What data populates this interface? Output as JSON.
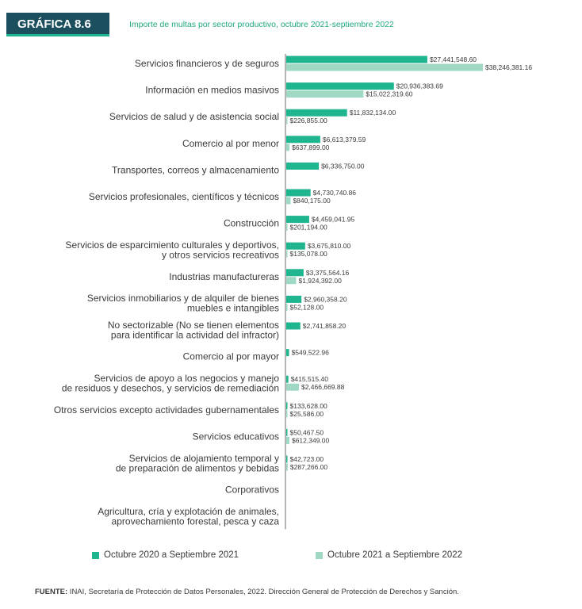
{
  "header": {
    "badge": "GRÁFICA 8.6",
    "title": "Importe de multas por sector productivo, octubre 2021-septiembre 2022"
  },
  "colors": {
    "series1": "#1fb58f",
    "series2": "#9fd9c4",
    "badge_bg": "#1b4f5e"
  },
  "chart_data": {
    "type": "bar",
    "orientation": "horizontal",
    "title": "Importe de multas por sector productivo, octubre 2021-septiembre 2022",
    "categories": [
      "Servicios financieros y de seguros",
      "Información en medios masivos",
      "Servicios de salud y de asistencia social",
      "Comercio al por menor",
      "Transportes, correos y almacenamiento",
      "Servicios profesionales, científicos y técnicos",
      "Construcción",
      "Servicios de esparcimiento culturales y deportivos, y otros servicios recreativos",
      "Industrias manufactureras",
      "Servicios inmobiliarios y de alquiler de bienes muebles e intangibles",
      "No sectorizable (No se tienen elementos para identificar la actividad del infractor)",
      "Comercio al por mayor",
      "Servicios de apoyo a los negocios y manejo de residuos y desechos, y servicios de remediación",
      "Otros servicios excepto actividades gubernamentales",
      "Servicios educativos",
      "Servicios de alojamiento temporal y de preparación de alimentos y bebidas",
      "Corporativos",
      "Agricultura, cría y explotación de animales, aprovechamiento forestal, pesca y caza"
    ],
    "category_lines": [
      [
        "Servicios financieros y de seguros"
      ],
      [
        "Información en medios masivos"
      ],
      [
        "Servicios de salud y de asistencia social"
      ],
      [
        "Comercio al por menor"
      ],
      [
        "Transportes, correos y almacenamiento"
      ],
      [
        "Servicios profesionales, científicos y técnicos"
      ],
      [
        "Construcción"
      ],
      [
        "Servicios de esparcimiento culturales y deportivos,",
        "y otros servicios recreativos"
      ],
      [
        "Industrias manufactureras"
      ],
      [
        "Servicios inmobiliarios y de alquiler de bienes",
        "muebles e intangibles"
      ],
      [
        "No sectorizable (No se tienen elementos",
        "para identificar la actividad del infractor)"
      ],
      [
        "Comercio al por mayor"
      ],
      [
        "Servicios de apoyo a los negocios y manejo",
        "de residuos y desechos, y servicios de remediación"
      ],
      [
        "Otros servicios excepto actividades gubernamentales"
      ],
      [
        "Servicios educativos"
      ],
      [
        "Servicios de alojamiento temporal y",
        "de preparación de alimentos y bebidas"
      ],
      [
        "Corporativos"
      ],
      [
        "Agricultura, cría y explotación de animales,",
        "aprovechamiento forestal, pesca y caza"
      ]
    ],
    "series": [
      {
        "name": "Octubre 2020 a Septiembre 2021",
        "values": [
          27441548.6,
          20936383.69,
          11832134.0,
          6613379.59,
          6336750.0,
          4730740.86,
          4459041.95,
          3675810.0,
          3375564.16,
          2960358.2,
          2741858.2,
          549522.96,
          415515.4,
          133628.0,
          50467.5,
          42723.0,
          null,
          null
        ],
        "labels": [
          "$27,441,548.60",
          "$20,936,383.69",
          "$11,832,134.00",
          "$6,613,379.59",
          "$6,336,750.00",
          "$4,730,740.86",
          "$4,459,041.95",
          "$3,675,810.00",
          "$3,375,564.16",
          "$2,960,358.20",
          "$2,741,858.20",
          "$549,522.96",
          "$415,515.40",
          "$133,628.00",
          "$50,467.50",
          "$42,723.00",
          null,
          null
        ]
      },
      {
        "name": "Octubre 2021 a Septiembre 2022",
        "values": [
          38246381.16,
          15022319.6,
          226855.0,
          637899.0,
          null,
          840175.0,
          201194.0,
          135078.0,
          1924392.0,
          52128.0,
          null,
          null,
          2466669.88,
          25586.0,
          612349.0,
          287266.0,
          null,
          null
        ],
        "labels": [
          "$38,246,381.16",
          "$15,022,319.60",
          "$226,855.00",
          "$637,899.00",
          null,
          "$840,175.00",
          "$201,194.00",
          "$135,078.00",
          "$1,924,392.00",
          "$52,128.00",
          null,
          null,
          "$2,466,669.88",
          "$25,586.00",
          "$612,349.00",
          "$287,266.00",
          null,
          null
        ]
      }
    ],
    "xlim": [
      0,
      38246381.16
    ],
    "legend_position": "bottom",
    "grid": false
  },
  "source": {
    "prefix": "FUENTE:",
    "text": " INAI, Secretaría de Protección de Datos Personales, 2022. Dirección General de Protección de Derechos y Sanción."
  }
}
